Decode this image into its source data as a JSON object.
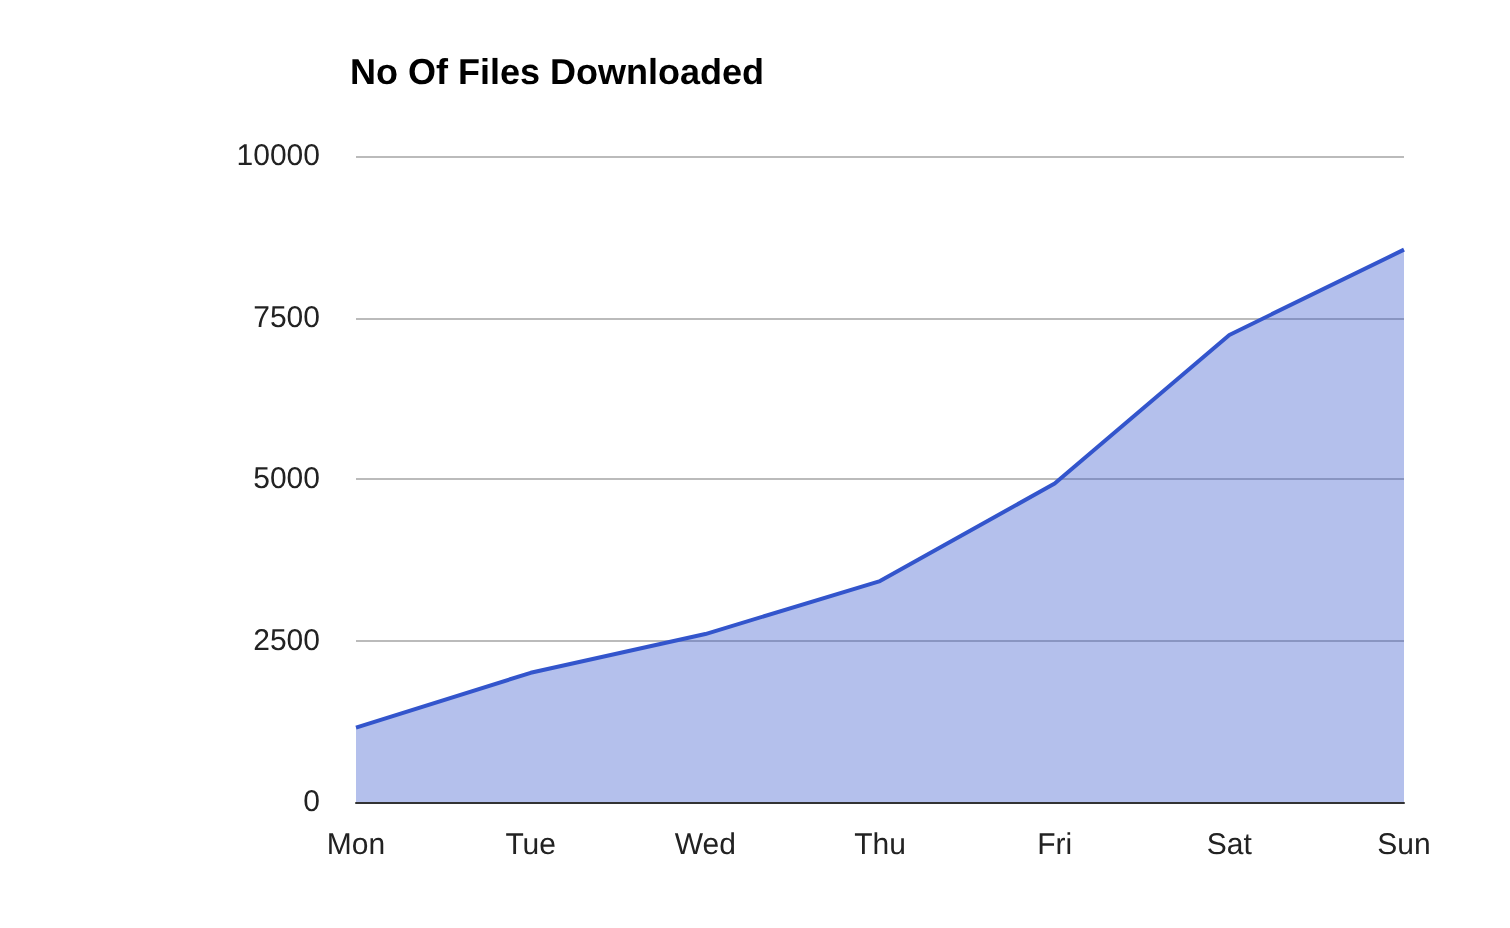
{
  "chart_data": {
    "type": "area",
    "title": "No Of Files Downloaded",
    "categories": [
      "Mon",
      "Tue",
      "Wed",
      "Thu",
      "Fri",
      "Sat",
      "Sun"
    ],
    "series": [
      {
        "color": "#3355cc",
        "values": [
          1150,
          2000,
          2600,
          3420,
          4930,
          7230,
          8550
        ]
      }
    ],
    "ylim": [
      0,
      10000
    ],
    "yticks": [
      0,
      2500,
      5000,
      7500,
      10000
    ],
    "grid": "y",
    "marker": "none"
  }
}
